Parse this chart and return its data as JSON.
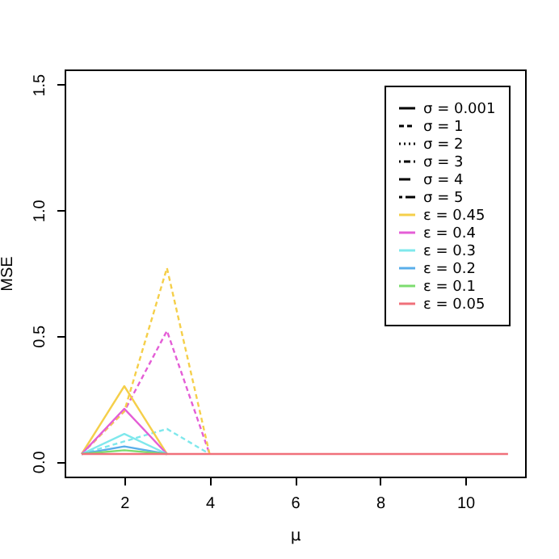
{
  "chart_data": {
    "type": "line",
    "xlabel": "μ",
    "ylabel": "MSE",
    "x": [
      1,
      2,
      3,
      4,
      5,
      6,
      7,
      8,
      9,
      10,
      11
    ],
    "xlim": [
      0.6,
      11.4
    ],
    "ylim": [
      -0.06,
      1.56
    ],
    "xticks": [
      2,
      4,
      6,
      8,
      10
    ],
    "yticks": [
      {
        "value": 0,
        "label": "0.0"
      },
      {
        "value": 0.5,
        "label": "0.5"
      },
      {
        "value": 1,
        "label": "1.0"
      },
      {
        "value": 1.5,
        "label": "1.5"
      }
    ],
    "grid": false,
    "legend": "top right",
    "marker": "none",
    "series": [
      {
        "name": "σ = 0.001",
        "color": "#000000",
        "line_style": "solid",
        "values": [
          null,
          null,
          null,
          null,
          null,
          null,
          null,
          null,
          null,
          null,
          null
        ]
      },
      {
        "name": "σ = 1",
        "color": "#000000",
        "line_style": "dashed",
        "values": [
          null,
          null,
          null,
          null,
          null,
          null,
          null,
          null,
          null,
          null,
          null
        ]
      },
      {
        "name": "σ = 2",
        "color": "#000000",
        "line_style": "dotted",
        "values": [
          null,
          null,
          null,
          null,
          null,
          null,
          null,
          null,
          null,
          null,
          null
        ]
      },
      {
        "name": "σ = 3",
        "color": "#000000",
        "line_style": "dotdash",
        "values": [
          null,
          null,
          null,
          null,
          null,
          null,
          null,
          null,
          null,
          null,
          null
        ]
      },
      {
        "name": "σ = 4",
        "color": "#000000",
        "line_style": "longdash",
        "values": [
          null,
          null,
          null,
          null,
          null,
          null,
          null,
          null,
          null,
          null,
          null
        ]
      },
      {
        "name": "σ = 5",
        "color": "#000000",
        "line_style": "twodash",
        "values": [
          null,
          null,
          null,
          null,
          null,
          null,
          null,
          null,
          null,
          null,
          null
        ]
      },
      {
        "color": "#7fe8ec",
        "line_style": "dashed",
        "values": [
          0.03,
          0.08,
          0.13,
          0.03,
          null,
          null,
          null,
          null,
          null,
          null,
          null
        ]
      },
      {
        "color": "#e45ed6",
        "line_style": "dashed",
        "values": [
          0.03,
          0.2,
          0.52,
          0.03,
          null,
          null,
          null,
          null,
          null,
          null,
          null
        ]
      },
      {
        "color": "#f5cf4a",
        "line_style": "dashed",
        "values": [
          0.03,
          0.2,
          0.77,
          0.03,
          null,
          null,
          null,
          null,
          null,
          null,
          null
        ]
      },
      {
        "name": "ε = 0.45",
        "color": "#f5cf4a",
        "line_style": "solid",
        "values": [
          0.03,
          0.3,
          0.03,
          null,
          null,
          null,
          null,
          null,
          null,
          null,
          null
        ]
      },
      {
        "name": "ε = 0.4",
        "color": "#e45ed6",
        "line_style": "solid",
        "values": [
          0.03,
          0.21,
          0.03,
          null,
          null,
          null,
          null,
          null,
          null,
          null,
          null
        ]
      },
      {
        "name": "ε = 0.3",
        "color": "#7fe8ec",
        "line_style": "solid",
        "values": [
          0.03,
          0.11,
          0.03,
          null,
          null,
          null,
          null,
          null,
          null,
          null,
          null
        ]
      },
      {
        "name": "ε = 0.2",
        "color": "#5aaeea",
        "line_style": "solid",
        "values": [
          0.03,
          0.06,
          0.03,
          null,
          null,
          null,
          null,
          null,
          null,
          null,
          null
        ]
      },
      {
        "name": "ε = 0.1",
        "color": "#7ddc6f",
        "line_style": "solid",
        "values": [
          0.03,
          0.045,
          0.03,
          null,
          null,
          null,
          null,
          null,
          null,
          null,
          null
        ]
      },
      {
        "name": "ε = 0.05",
        "color": "#f0707a",
        "line_style": "solid",
        "values": [
          0.03,
          0.03,
          0.03,
          0.03,
          0.03,
          0.03,
          0.03,
          0.03,
          0.03,
          0.03,
          0.03
        ]
      }
    ]
  }
}
